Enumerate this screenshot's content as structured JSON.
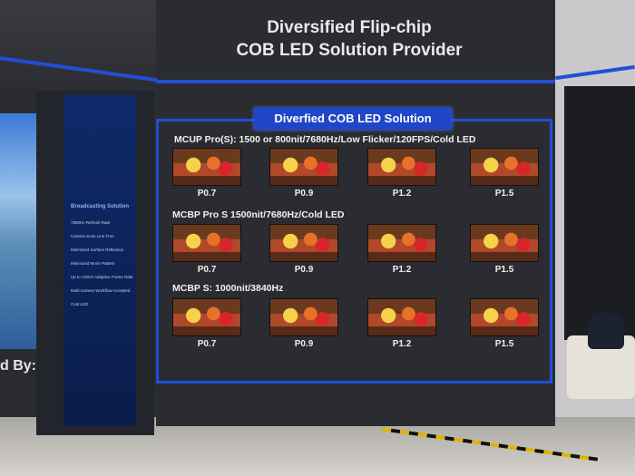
{
  "header": {
    "title_lines": [
      "Diversified Flip-chip",
      "COB LED Solution Provider"
    ]
  },
  "banner": "Diverfied COB LED Solution",
  "rows": [
    {
      "heading": "MCUP Pro(S): 1500 or 800nit/7680Hz/Low Flicker/120FPS/Cold LED",
      "screens": [
        "P0.7",
        "P0.9",
        "P1.2",
        "P1.5"
      ]
    },
    {
      "heading": "MCBP Pro S  1500nit/7680Hz/Cold LED",
      "screens": [
        "P0.7",
        "P0.9",
        "P1.2",
        "P1.5"
      ]
    },
    {
      "heading": "MCBP S: 1000nit/3840Hz",
      "screens": [
        "P0.7",
        "P0.9",
        "P1.2",
        "P1.5"
      ]
    }
  ],
  "left_panel": {
    "title": "Broadcasting Solution",
    "items": [
      "7680Hz Refresh Rate",
      "Camera Scan Line Free",
      "Minimized Surface Reflection",
      "Minimized Moire Pattern",
      "Up to 120Hz Adaptive Frame Rate",
      "Multi-camera Workflow Accepted",
      "Cold LED"
    ]
  },
  "sponsor": "d By:"
}
